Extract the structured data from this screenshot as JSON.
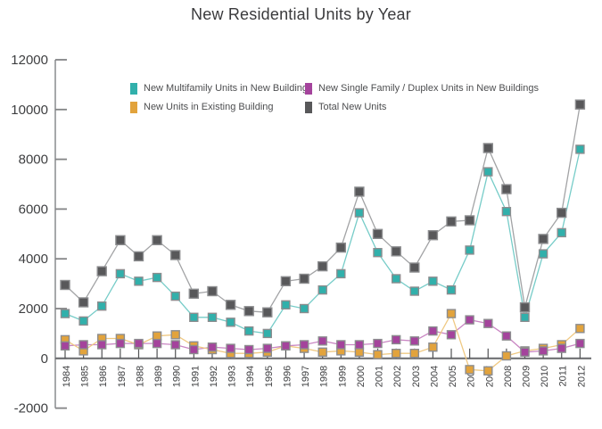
{
  "title": "New Residential Units by Year",
  "axes": {
    "y_tick_labels": [
      "12000",
      "10000",
      "8000",
      "6000",
      "4000",
      "2000",
      "0",
      "-2000"
    ],
    "y_ticks": [
      12000,
      10000,
      8000,
      6000,
      4000,
      2000,
      0,
      -2000
    ],
    "x_tick_labels": [
      "1984",
      "1985",
      "1986",
      "1987",
      "1988",
      "1989",
      "1990",
      "1991",
      "1992",
      "1993",
      "1994",
      "1995",
      "1996",
      "1997",
      "1998",
      "1999",
      "2000",
      "2001",
      "2002",
      "2003",
      "2004",
      "2005",
      "2006",
      "2007",
      "2008",
      "2009",
      "2010",
      "2011",
      "2012"
    ]
  },
  "chart_data": {
    "type": "line",
    "title": "New Residential Units by Year",
    "xlabel": "",
    "ylabel": "",
    "ylim": [
      -2000,
      12000
    ],
    "ytick_step": 2000,
    "grid": "off",
    "legend_position": "top-left-inside",
    "x": [
      1984,
      1985,
      1986,
      1987,
      1988,
      1989,
      1990,
      1991,
      1992,
      1993,
      1994,
      1995,
      1996,
      1997,
      1998,
      1999,
      2000,
      2001,
      2002,
      2003,
      2004,
      2005,
      2006,
      2007,
      2008,
      2009,
      2010,
      2011,
      2012
    ],
    "series": [
      {
        "name": "New Multifamily Units in New Buildings",
        "color": "#31b0ab",
        "line_color": "#76ccc8",
        "marker": "square",
        "marker_size": 9,
        "values": [
          1800,
          1500,
          2100,
          3400,
          3100,
          3250,
          2500,
          1650,
          1650,
          1450,
          1100,
          1000,
          2150,
          2000,
          2750,
          3400,
          5850,
          4250,
          3200,
          2700,
          3100,
          2750,
          4350,
          7500,
          5900,
          1650,
          4200,
          5050,
          8400
        ]
      },
      {
        "name": "New Single Family / Duplex Units in New Buildings",
        "color": "#a4439c",
        "line_color": "#c986c3",
        "marker": "square",
        "marker_size": 9,
        "values": [
          500,
          550,
          550,
          600,
          600,
          600,
          550,
          350,
          450,
          400,
          350,
          400,
          500,
          550,
          700,
          550,
          550,
          600,
          750,
          700,
          1100,
          950,
          1550,
          1400,
          900,
          250,
          300,
          400,
          600
        ]
      },
      {
        "name": "New Units in Existing Building",
        "color": "#e2a33c",
        "line_color": "#efc983",
        "marker": "square",
        "marker_size": 9,
        "values": [
          750,
          300,
          800,
          800,
          550,
          900,
          950,
          500,
          350,
          200,
          200,
          250,
          500,
          400,
          250,
          300,
          250,
          150,
          200,
          200,
          450,
          1800,
          -450,
          -500,
          100,
          300,
          400,
          550,
          1200
        ]
      },
      {
        "name": "Total New Units",
        "color": "#58585a",
        "line_color": "#a2a3a5",
        "marker": "square",
        "marker_size": 10,
        "values": [
          2950,
          2250,
          3500,
          4750,
          4100,
          4750,
          4150,
          2600,
          2700,
          2150,
          1900,
          1850,
          3100,
          3200,
          3700,
          4450,
          6700,
          5000,
          4300,
          3650,
          4950,
          5500,
          5550,
          8450,
          6800,
          2050,
          4800,
          5850,
          10200
        ]
      }
    ]
  }
}
